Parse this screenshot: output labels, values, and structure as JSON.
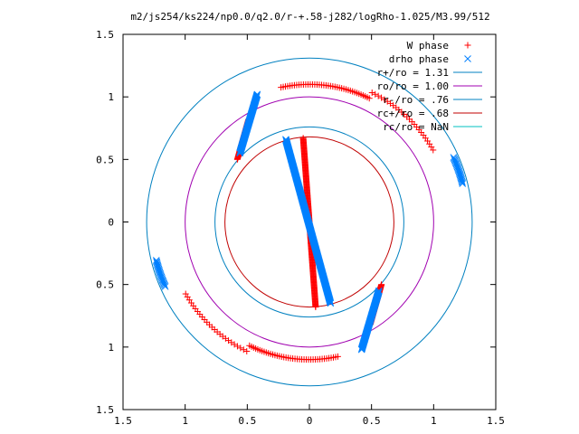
{
  "chart_data": {
    "type": "scatter",
    "title": "m2/js254/ks224/np0.0/q2.0/r-+.58-j282/logRho-1.025/M3.99/512",
    "xlim": [
      -1.5,
      1.5
    ],
    "ylim": [
      -1.5,
      1.5
    ],
    "x_ticks": [
      -1.5,
      -1,
      -0.5,
      0,
      0.5,
      1,
      1.5
    ],
    "x_tick_labels": [
      "1.5",
      "1",
      "0.5",
      "0",
      "0.5",
      "1",
      "1.5"
    ],
    "y_ticks": [
      1.5,
      1,
      0.5,
      0,
      -0.5,
      -1,
      -1.5
    ],
    "y_tick_labels": [
      "1.5",
      "1",
      "0.5",
      "0",
      "0.5",
      "1",
      "1.5"
    ],
    "grid": false,
    "legend_position": "top-right",
    "colors": {
      "w_phase": "#ff0000",
      "drho_phase": "#0080ff"
    },
    "circles": [
      {
        "label": "r+/ro = 1.31",
        "r": 1.31,
        "color": "#0080c0"
      },
      {
        "label": "ro/ro = 1.00",
        "r": 1.0,
        "color": "#a000b0"
      },
      {
        "label": "r-/ro = .76",
        "r": 0.76,
        "color": "#0080c0"
      },
      {
        "label": "rc+/ro = .68",
        "r": 0.68,
        "color": "#c00000"
      },
      {
        "label": "rc/ro = NaN",
        "r": null,
        "color": "#00c0c0"
      }
    ],
    "series": [
      {
        "name": "W phase",
        "marker": "plus",
        "color": "#ff0000",
        "segments": [
          {
            "kind": "line",
            "x1": -0.05,
            "y1": 0.67,
            "x2": 0.05,
            "y2": -0.68
          },
          {
            "kind": "line",
            "x1": -0.58,
            "y1": 0.5,
            "x2": -0.49,
            "y2": 0.82
          },
          {
            "kind": "line",
            "x1": 0.58,
            "y1": -0.5,
            "x2": 0.49,
            "y2": -0.82
          },
          {
            "kind": "arc",
            "r": 1.1,
            "a1": 64,
            "a2": 102,
            "n": 40
          },
          {
            "kind": "arc",
            "r": 1.1,
            "a1": 244,
            "a2": 282,
            "n": 40
          },
          {
            "kind": "arc",
            "r": 1.15,
            "a1": 30,
            "a2": 64,
            "n": 24
          },
          {
            "kind": "arc",
            "r": 1.15,
            "a1": 210,
            "a2": 244,
            "n": 24
          }
        ]
      },
      {
        "name": "drho phase",
        "marker": "x",
        "color": "#0080ff",
        "segments": [
          {
            "kind": "line",
            "x1": -0.19,
            "y1": 0.66,
            "x2": 0.17,
            "y2": -0.65
          },
          {
            "kind": "line",
            "x1": -0.56,
            "y1": 0.55,
            "x2": -0.42,
            "y2": 1.02
          },
          {
            "kind": "line",
            "x1": 0.56,
            "y1": -0.55,
            "x2": 0.42,
            "y2": -1.02
          },
          {
            "kind": "arc",
            "r": 1.27,
            "a1": 14,
            "a2": 24,
            "n": 22
          },
          {
            "kind": "arc",
            "r": 1.27,
            "a1": 194,
            "a2": 204,
            "n": 22
          }
        ]
      }
    ]
  }
}
